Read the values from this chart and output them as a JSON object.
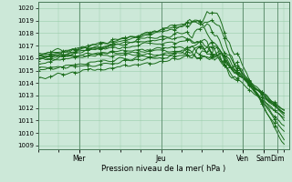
{
  "title": "",
  "xlabel": "Pression niveau de la mer( hPa )",
  "bg_color": "#cce8d8",
  "grid_color": "#99ccaa",
  "line_color": "#1a6b1a",
  "ylim": [
    1009,
    1020
  ],
  "yticks": [
    1009,
    1010,
    1011,
    1012,
    1013,
    1014,
    1015,
    1016,
    1017,
    1018,
    1019,
    1020
  ],
  "day_positions": [
    0.167,
    0.5,
    0.833,
    0.917,
    0.972
  ],
  "day_labels": [
    "Mer",
    "Jeu",
    "Ven",
    "Sam",
    "Dim"
  ],
  "num_points": 100
}
